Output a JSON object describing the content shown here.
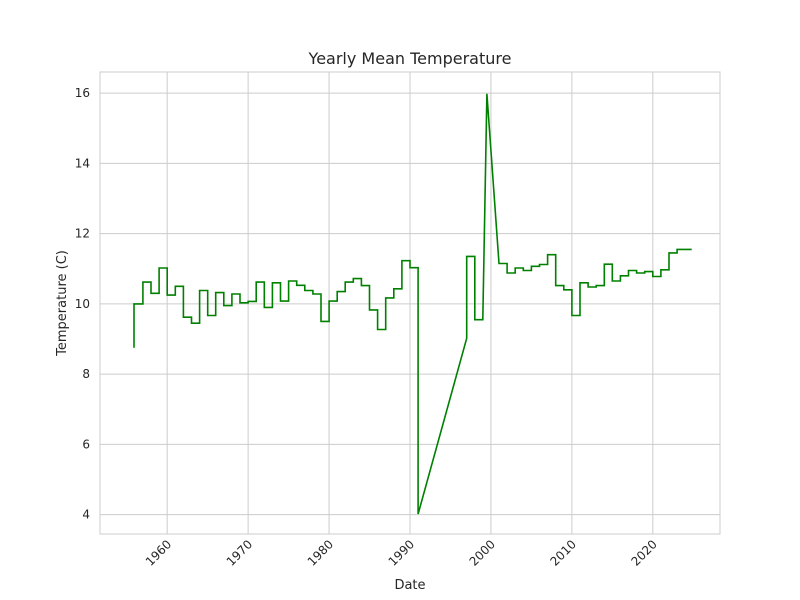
{
  "chart_data": {
    "type": "line",
    "title": "Yearly Mean Temperature",
    "xlabel": "Date",
    "ylabel": "Temperature (C)",
    "xlim": [
      1951.7,
      2028.3
    ],
    "ylim": [
      3.45,
      16.6
    ],
    "xticks": [
      1960,
      1970,
      1980,
      1990,
      2000,
      2010,
      2020
    ],
    "yticks": [
      4,
      6,
      8,
      10,
      12,
      14,
      16
    ],
    "grid": true,
    "line_color": "#008000",
    "series": [
      {
        "points": [
          [
            1955.9,
            8.75
          ],
          [
            1955.9,
            10.0
          ],
          [
            1957.0,
            10.0
          ],
          [
            1957.0,
            10.62
          ],
          [
            1958.0,
            10.62
          ],
          [
            1958.0,
            10.3
          ],
          [
            1959.0,
            10.3
          ],
          [
            1959.0,
            11.02
          ],
          [
            1960.0,
            11.02
          ],
          [
            1960.0,
            10.25
          ],
          [
            1961.0,
            10.25
          ],
          [
            1961.0,
            10.5
          ],
          [
            1962.0,
            10.5
          ],
          [
            1962.0,
            9.62
          ],
          [
            1963.0,
            9.62
          ],
          [
            1963.0,
            9.45
          ],
          [
            1964.0,
            9.45
          ],
          [
            1964.0,
            10.38
          ],
          [
            1965.0,
            10.38
          ],
          [
            1965.0,
            9.67
          ],
          [
            1966.0,
            9.67
          ],
          [
            1966.0,
            10.32
          ],
          [
            1967.0,
            10.32
          ],
          [
            1967.0,
            9.95
          ],
          [
            1968.0,
            9.95
          ],
          [
            1968.0,
            10.28
          ],
          [
            1969.0,
            10.28
          ],
          [
            1969.0,
            10.03
          ],
          [
            1970.0,
            10.03
          ],
          [
            1970.0,
            10.07
          ],
          [
            1971.0,
            10.07
          ],
          [
            1971.0,
            10.62
          ],
          [
            1972.0,
            10.62
          ],
          [
            1972.0,
            9.9
          ],
          [
            1973.0,
            9.9
          ],
          [
            1973.0,
            10.6
          ],
          [
            1974.0,
            10.6
          ],
          [
            1974.0,
            10.08
          ],
          [
            1975.0,
            10.08
          ],
          [
            1975.0,
            10.65
          ],
          [
            1976.0,
            10.65
          ],
          [
            1976.0,
            10.53
          ],
          [
            1977.0,
            10.53
          ],
          [
            1977.0,
            10.38
          ],
          [
            1978.0,
            10.38
          ],
          [
            1978.0,
            10.28
          ],
          [
            1979.0,
            10.28
          ],
          [
            1979.0,
            9.5
          ],
          [
            1980.0,
            9.5
          ],
          [
            1980.0,
            10.08
          ],
          [
            1981.0,
            10.08
          ],
          [
            1981.0,
            10.35
          ],
          [
            1982.0,
            10.35
          ],
          [
            1982.0,
            10.62
          ],
          [
            1983.0,
            10.62
          ],
          [
            1983.0,
            10.72
          ],
          [
            1984.0,
            10.72
          ],
          [
            1984.0,
            10.52
          ],
          [
            1985.0,
            10.52
          ],
          [
            1985.0,
            9.83
          ],
          [
            1986.0,
            9.83
          ],
          [
            1986.0,
            9.27
          ],
          [
            1987.0,
            9.27
          ],
          [
            1987.0,
            10.17
          ],
          [
            1988.0,
            10.17
          ],
          [
            1988.0,
            10.43
          ],
          [
            1989.0,
            10.43
          ],
          [
            1989.0,
            11.23
          ],
          [
            1990.0,
            11.23
          ],
          [
            1990.0,
            11.03
          ],
          [
            1991.0,
            11.03
          ],
          [
            1991.0,
            4.02
          ],
          [
            1997.0,
            9.02
          ],
          [
            1997.0,
            11.35
          ],
          [
            1998.0,
            11.35
          ],
          [
            1998.0,
            9.55
          ],
          [
            1999.0,
            9.55
          ],
          [
            1999.5,
            15.98
          ],
          [
            2001.0,
            11.15
          ],
          [
            2002.0,
            11.15
          ],
          [
            2002.0,
            10.88
          ],
          [
            2003.0,
            10.88
          ],
          [
            2003.0,
            11.02
          ],
          [
            2004.0,
            11.02
          ],
          [
            2004.0,
            10.95
          ],
          [
            2005.0,
            10.95
          ],
          [
            2005.0,
            11.07
          ],
          [
            2006.0,
            11.07
          ],
          [
            2006.0,
            11.12
          ],
          [
            2007.0,
            11.12
          ],
          [
            2007.0,
            11.4
          ],
          [
            2008.0,
            11.4
          ],
          [
            2008.0,
            10.52
          ],
          [
            2009.0,
            10.52
          ],
          [
            2009.0,
            10.4
          ],
          [
            2010.0,
            10.4
          ],
          [
            2010.0,
            9.67
          ],
          [
            2011.0,
            9.67
          ],
          [
            2011.0,
            10.6
          ],
          [
            2012.0,
            10.6
          ],
          [
            2012.0,
            10.48
          ],
          [
            2013.0,
            10.48
          ],
          [
            2013.0,
            10.52
          ],
          [
            2014.0,
            10.52
          ],
          [
            2014.0,
            11.13
          ],
          [
            2015.0,
            11.13
          ],
          [
            2015.0,
            10.65
          ],
          [
            2016.0,
            10.65
          ],
          [
            2016.0,
            10.8
          ],
          [
            2017.0,
            10.8
          ],
          [
            2017.0,
            10.95
          ],
          [
            2018.0,
            10.95
          ],
          [
            2018.0,
            10.88
          ],
          [
            2019.0,
            10.88
          ],
          [
            2019.0,
            10.92
          ],
          [
            2020.0,
            10.92
          ],
          [
            2020.0,
            10.78
          ],
          [
            2021.0,
            10.78
          ],
          [
            2021.0,
            10.97
          ],
          [
            2022.0,
            10.97
          ],
          [
            2022.0,
            11.45
          ],
          [
            2023.0,
            11.45
          ],
          [
            2023.0,
            11.55
          ],
          [
            2024.8,
            11.55
          ]
        ]
      }
    ]
  }
}
